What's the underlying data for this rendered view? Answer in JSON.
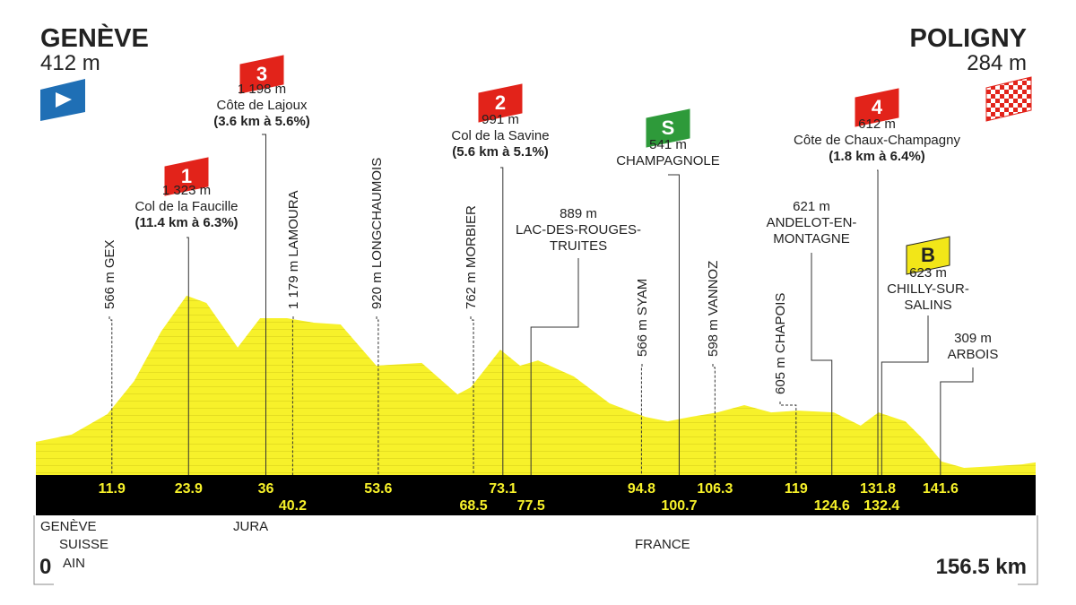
{
  "chart_data": {
    "type": "profile",
    "start": {
      "name": "GENÈVE",
      "altitude": "412 m"
    },
    "finish": {
      "name": "POLIGNY",
      "altitude": "284 m"
    },
    "distance_start": 0,
    "distance_total": "156.5 km",
    "color": "#f7f12a",
    "x": [
      0,
      5.6,
      11.2,
      15.4,
      19.6,
      23.6,
      26.7,
      31.6,
      35.1,
      39.3,
      43.5,
      47.7,
      50.5,
      53.3,
      60.4,
      66,
      68.1,
      72.7,
      75.8,
      78.6,
      84.2,
      89.8,
      95.4,
      98.9,
      102.5,
      106.7,
      110.9,
      115.1,
      119.3,
      124.9,
      129.1,
      131.9,
      136.1,
      138.9,
      141.8,
      145.3,
      150.2,
      154.4,
      156.5
    ],
    "values": [
      412,
      457,
      585,
      792,
      1099,
      1323,
      1278,
      1000,
      1183,
      1183,
      1155,
      1144,
      1015,
      887,
      904,
      708,
      753,
      987,
      887,
      920,
      820,
      652,
      568,
      540,
      568,
      596,
      641,
      596,
      607,
      596,
      513,
      596,
      540,
      429,
      289,
      250,
      261,
      272,
      284
    ],
    "waypoints": [
      {
        "km": 11.9,
        "lines": [
          "566 m GEX"
        ]
      },
      {
        "km": 23.9,
        "badge": "1",
        "badge_color": "#e2231a",
        "lines": [
          "1 323 m",
          "Col de la Faucille",
          "(11.4 km à 6.3%)"
        ]
      },
      {
        "km": 36,
        "badge": "3",
        "badge_color": "#e2231a",
        "lines": [
          "1 198 m",
          "Côte de Lajoux",
          "(3.6 km à 5.6%)"
        ]
      },
      {
        "km": 40.2,
        "lines": [
          "1 179 m LAMOURA"
        ]
      },
      {
        "km": 53.6,
        "lines": [
          "920 m LONGCHAUMOIS"
        ]
      },
      {
        "km": 68.5,
        "lines": [
          "762 m MORBIER"
        ]
      },
      {
        "km": 73.1,
        "badge": "2",
        "badge_color": "#e2231a",
        "lines": [
          "991 m",
          "Col de la Savine",
          "(5.6 km à 5.1%)"
        ]
      },
      {
        "km": 77.5,
        "lines": [
          "889 m",
          "LAC-DES-ROUGES-",
          "TRUITES"
        ]
      },
      {
        "km": 94.8,
        "lines": [
          "566 m SYAM"
        ]
      },
      {
        "km": 100.7,
        "badge": "S",
        "badge_color": "#2e9a3a",
        "lines": [
          "541 m",
          "CHAMPAGNOLE"
        ]
      },
      {
        "km": 106.3,
        "lines": [
          "598 m VANNOZ"
        ]
      },
      {
        "km": 119,
        "lines": [
          "605 m CHAPOIS"
        ]
      },
      {
        "km": 124.6,
        "lines": [
          "621 m",
          "ANDELOT-EN-",
          "MONTAGNE"
        ]
      },
      {
        "km": 131.8,
        "badge": "4",
        "badge_color": "#e2231a",
        "lines": [
          "612 m",
          "Côte de Chaux-Champagny",
          "(1.8 km à 6.4%)"
        ]
      },
      {
        "km": 132.4,
        "badge": "B",
        "badge_color": "#f2e618",
        "lines": [
          "623 m",
          "CHILLY-SUR-",
          "SALINS"
        ]
      },
      {
        "km": 141.6,
        "lines": [
          "309 m",
          "ARBOIS"
        ]
      }
    ],
    "regions": [
      "GENÈVE",
      "SUISSE",
      "AIN",
      "JURA",
      "FRANCE"
    ]
  }
}
